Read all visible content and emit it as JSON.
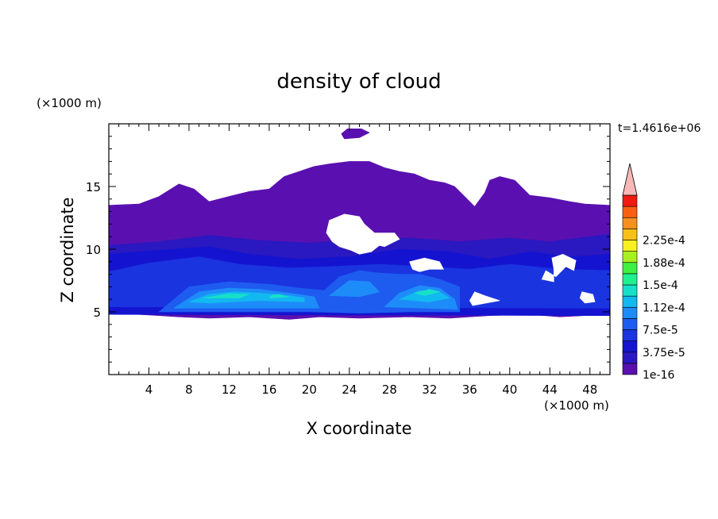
{
  "chart_data": {
    "type": "heatmap",
    "title": "density of cloud",
    "xlabel": "X coordinate",
    "ylabel": "Z coordinate",
    "x_unit": "(×1000 m)",
    "y_unit": "(×1000 m)",
    "time_label": "t=1.4616e+06",
    "xlim": [
      0,
      50
    ],
    "ylim": [
      0,
      20
    ],
    "x_ticks": [
      4,
      8,
      12,
      16,
      20,
      24,
      28,
      32,
      36,
      40,
      44,
      48
    ],
    "y_ticks": [
      5,
      10,
      15
    ],
    "grid": false,
    "colorbar": {
      "labels": [
        "1e-16",
        "3.75e-5",
        "7.5e-5",
        "1.12e-4",
        "1.5e-4",
        "1.88e-4",
        "2.25e-4"
      ],
      "colors": [
        "#5a10b0",
        "#2a18c0",
        "#1414d0",
        "#1a34e0",
        "#1e5cf0",
        "#1e8cf8",
        "#12b8f0",
        "#18e0c8",
        "#20f090",
        "#40f040",
        "#a8f020",
        "#f8f020",
        "#f8c018",
        "#f89020",
        "#f86010",
        "#f01a10",
        "#f8b8b8"
      ],
      "extend": "max"
    },
    "regions": [
      {
        "level": 0,
        "polygon": [
          [
            0,
            13.5
          ],
          [
            3,
            13.6
          ],
          [
            5,
            14.2
          ],
          [
            7,
            15.2
          ],
          [
            8.5,
            14.8
          ],
          [
            10,
            13.8
          ],
          [
            12,
            14.2
          ],
          [
            14,
            14.6
          ],
          [
            16,
            14.8
          ],
          [
            17.5,
            15.8
          ],
          [
            19,
            16.2
          ],
          [
            20.5,
            16.6
          ],
          [
            22,
            16.8
          ],
          [
            24,
            17
          ],
          [
            26,
            17
          ],
          [
            27.5,
            16.5
          ],
          [
            29,
            16.2
          ],
          [
            30.5,
            16
          ],
          [
            32,
            15.5
          ],
          [
            33.5,
            15.3
          ],
          [
            34.5,
            15
          ],
          [
            35.5,
            14.2
          ],
          [
            36.5,
            13.4
          ],
          [
            37.5,
            14.5
          ],
          [
            38,
            15.5
          ],
          [
            39,
            15.8
          ],
          [
            40.5,
            15.5
          ],
          [
            42,
            14.3
          ],
          [
            44,
            14.1
          ],
          [
            46,
            13.8
          ],
          [
            47.5,
            13.6
          ],
          [
            50,
            13.5
          ],
          [
            50,
            4.7
          ],
          [
            47.5,
            4.7
          ],
          [
            45,
            4.6
          ],
          [
            42,
            4.8
          ],
          [
            38,
            4.7
          ],
          [
            36,
            4.6
          ],
          [
            34,
            4.5
          ],
          [
            30,
            4.6
          ],
          [
            25,
            4.5
          ],
          [
            21,
            4.6
          ],
          [
            18,
            4.4
          ],
          [
            14,
            4.6
          ],
          [
            10,
            4.5
          ],
          [
            7,
            4.6
          ],
          [
            5,
            4.7
          ],
          [
            3,
            4.8
          ],
          [
            0,
            4.8
          ]
        ]
      },
      {
        "level": 0,
        "polygon": [
          [
            23.5,
            18.8
          ],
          [
            25,
            18.9
          ],
          [
            26,
            19.3
          ],
          [
            25.2,
            19.6
          ],
          [
            23.8,
            19.6
          ],
          [
            23.2,
            19.2
          ]
        ]
      },
      {
        "level": 1,
        "polygon": [
          [
            0,
            10.3
          ],
          [
            5,
            10.6
          ],
          [
            10,
            11.1
          ],
          [
            15,
            10.7
          ],
          [
            20,
            10.5
          ],
          [
            25,
            10.8
          ],
          [
            30,
            10.9
          ],
          [
            35,
            10.6
          ],
          [
            40,
            10.9
          ],
          [
            44,
            10.6
          ],
          [
            48,
            11
          ],
          [
            50,
            11.2
          ],
          [
            50,
            4.7
          ],
          [
            0,
            4.8
          ]
        ]
      },
      {
        "level": 2,
        "polygon": [
          [
            0,
            9.6
          ],
          [
            5,
            9.9
          ],
          [
            10,
            10.2
          ],
          [
            14,
            9.6
          ],
          [
            19,
            9.2
          ],
          [
            24,
            9.4
          ],
          [
            29,
            10
          ],
          [
            34,
            9.8
          ],
          [
            38,
            9.2
          ],
          [
            42,
            9.8
          ],
          [
            46,
            9.4
          ],
          [
            50,
            9.6
          ],
          [
            50,
            4.7
          ],
          [
            0,
            4.8
          ]
        ]
      },
      {
        "level": 3,
        "polygon": [
          [
            0,
            8.2
          ],
          [
            4,
            8.9
          ],
          [
            9,
            9.4
          ],
          [
            13,
            8.8
          ],
          [
            18,
            8.5
          ],
          [
            22,
            8.6
          ],
          [
            27,
            8.8
          ],
          [
            32,
            8.6
          ],
          [
            36,
            8.4
          ],
          [
            40,
            8.8
          ],
          [
            45,
            8.4
          ],
          [
            50,
            8.3
          ],
          [
            50,
            5.3
          ],
          [
            0,
            5.4
          ]
        ]
      },
      {
        "level": 4,
        "polygon": [
          [
            5,
            5
          ],
          [
            8,
            7
          ],
          [
            12,
            7.4
          ],
          [
            16,
            7.2
          ],
          [
            19,
            6.9
          ],
          [
            21.5,
            6.7
          ],
          [
            23,
            7.8
          ],
          [
            25,
            8.3
          ],
          [
            27,
            8.1
          ],
          [
            29,
            8
          ],
          [
            31,
            8
          ],
          [
            33,
            7.6
          ],
          [
            35,
            7
          ],
          [
            35,
            5
          ],
          [
            30,
            5
          ],
          [
            25,
            4.9
          ],
          [
            20,
            5
          ],
          [
            10,
            5
          ]
        ]
      },
      {
        "level": 5,
        "polygon": [
          [
            6.5,
            5.3
          ],
          [
            9,
            6.6
          ],
          [
            12,
            6.9
          ],
          [
            15,
            6.8
          ],
          [
            18,
            6.5
          ],
          [
            20.5,
            6.2
          ],
          [
            21,
            5.3
          ]
        ]
      },
      {
        "level": 5,
        "polygon": [
          [
            27.5,
            5.4
          ],
          [
            29,
            6.5
          ],
          [
            31,
            7.1
          ],
          [
            33,
            6.9
          ],
          [
            34.5,
            6
          ],
          [
            34.8,
            5.2
          ]
        ]
      },
      {
        "level": 5,
        "polygon": [
          [
            22,
            6.3
          ],
          [
            24,
            7.5
          ],
          [
            26,
            7.4
          ],
          [
            27,
            6.6
          ],
          [
            25,
            6.2
          ]
        ]
      },
      {
        "level": 6,
        "polygon": [
          [
            8,
            5.8
          ],
          [
            10,
            6.4
          ],
          [
            12.5,
            6.6
          ],
          [
            15,
            6.5
          ],
          [
            18,
            6.3
          ],
          [
            19.5,
            6.1
          ],
          [
            19.5,
            5.8
          ],
          [
            15,
            5.9
          ],
          [
            10,
            5.7
          ]
        ]
      },
      {
        "level": 6,
        "polygon": [
          [
            29,
            6
          ],
          [
            31,
            6.7
          ],
          [
            33,
            6.6
          ],
          [
            34,
            6.1
          ],
          [
            32,
            5.8
          ]
        ]
      },
      {
        "level": 7,
        "polygon": [
          [
            9.5,
            6.1
          ],
          [
            12,
            6.45
          ],
          [
            14,
            6.4
          ],
          [
            13,
            6.1
          ]
        ]
      },
      {
        "level": 7,
        "polygon": [
          [
            16,
            6.1
          ],
          [
            18,
            6.2
          ],
          [
            17,
            6.4
          ],
          [
            16.3,
            6.35
          ]
        ]
      },
      {
        "level": 7,
        "polygon": [
          [
            30.5,
            6.5
          ],
          [
            32,
            6.8
          ],
          [
            33,
            6.6
          ],
          [
            31.5,
            6.3
          ]
        ]
      },
      {
        "level": -1,
        "polygon": [
          [
            22,
            12.3
          ],
          [
            23.5,
            12.8
          ],
          [
            25,
            12.6
          ],
          [
            25.5,
            12
          ],
          [
            26.5,
            11.3
          ],
          [
            28.5,
            11.3
          ],
          [
            29,
            10.8
          ],
          [
            27.5,
            10.2
          ],
          [
            27,
            10.3
          ],
          [
            26.2,
            9.8
          ],
          [
            25,
            9.6
          ],
          [
            24.2,
            9.9
          ],
          [
            23,
            10.2
          ],
          [
            22.3,
            10.6
          ],
          [
            21.7,
            11.3
          ]
        ]
      },
      {
        "level": -1,
        "polygon": [
          [
            30,
            9
          ],
          [
            31.5,
            9.3
          ],
          [
            33,
            9
          ],
          [
            33.4,
            8.4
          ],
          [
            32,
            8.4
          ],
          [
            31,
            8.2
          ],
          [
            30.3,
            8.4
          ]
        ]
      },
      {
        "level": -1,
        "polygon": [
          [
            44.2,
            9.3
          ],
          [
            45.3,
            9.6
          ],
          [
            46.6,
            9.1
          ],
          [
            46.4,
            8.3
          ],
          [
            45.6,
            8.6
          ],
          [
            44.6,
            7.8
          ],
          [
            43.6,
            8.3
          ],
          [
            43.2,
            7.6
          ],
          [
            44.4,
            7.4
          ],
          [
            44.4,
            8.4
          ]
        ]
      },
      {
        "level": -1,
        "polygon": [
          [
            36.5,
            6.6
          ],
          [
            37.5,
            6.3
          ],
          [
            39,
            5.9
          ],
          [
            36.3,
            5.5
          ],
          [
            36,
            5.9
          ]
        ]
      },
      {
        "level": -1,
        "polygon": [
          [
            47.2,
            6.6
          ],
          [
            48.3,
            6.4
          ],
          [
            48.5,
            5.8
          ],
          [
            47.5,
            5.7
          ],
          [
            47,
            6.1
          ]
        ]
      }
    ]
  }
}
